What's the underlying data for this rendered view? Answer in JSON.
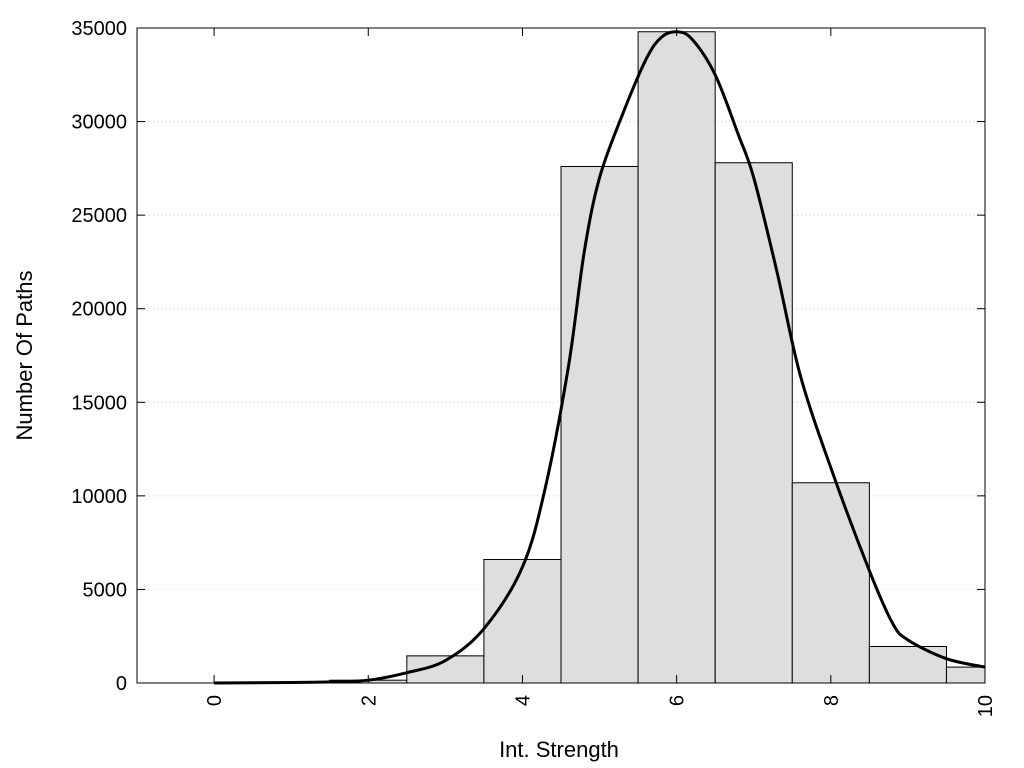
{
  "chart_data": {
    "type": "bar",
    "title": "",
    "xlabel": "Int. Strength",
    "ylabel": "Number Of Paths",
    "xlim": [
      -1,
      10
    ],
    "ylim": [
      0,
      35000
    ],
    "x_ticks": [
      0,
      2,
      4,
      6,
      8,
      10
    ],
    "y_ticks": [
      0,
      5000,
      10000,
      15000,
      20000,
      25000,
      30000,
      35000
    ],
    "grid": "horizontal-dotted",
    "legend": "none",
    "colors": {
      "bar_fill": "#dedede",
      "bar_stroke": "#000000",
      "curve": "#000000",
      "grid": "#cccccc"
    },
    "bars": [
      {
        "x": 0,
        "value": 0
      },
      {
        "x": 1,
        "value": 0
      },
      {
        "x": 2,
        "value": 150
      },
      {
        "x": 3,
        "value": 1450
      },
      {
        "x": 4,
        "value": 6600
      },
      {
        "x": 5,
        "value": 27600
      },
      {
        "x": 6,
        "value": 34800
      },
      {
        "x": 7,
        "value": 27800
      },
      {
        "x": 8,
        "value": 10700
      },
      {
        "x": 9,
        "value": 1950
      },
      {
        "x": 10,
        "value": 850
      }
    ],
    "bar_width": 1,
    "curve": [
      [
        0,
        0
      ],
      [
        1,
        30
      ],
      [
        1.5,
        60
      ],
      [
        2,
        150
      ],
      [
        2.5,
        550
      ],
      [
        3,
        1200
      ],
      [
        3.5,
        2900
      ],
      [
        4,
        6200
      ],
      [
        4.3,
        10500
      ],
      [
        4.6,
        17000
      ],
      [
        4.8,
        23000
      ],
      [
        5,
        27000
      ],
      [
        5.3,
        30400
      ],
      [
        5.6,
        33300
      ],
      [
        5.8,
        34500
      ],
      [
        6,
        34800
      ],
      [
        6.2,
        34400
      ],
      [
        6.5,
        32500
      ],
      [
        6.8,
        29300
      ],
      [
        7,
        27000
      ],
      [
        7.3,
        22000
      ],
      [
        7.6,
        16500
      ],
      [
        8,
        11500
      ],
      [
        8.5,
        6000
      ],
      [
        8.8,
        3200
      ],
      [
        9,
        2300
      ],
      [
        9.5,
        1300
      ],
      [
        10,
        850
      ]
    ]
  }
}
